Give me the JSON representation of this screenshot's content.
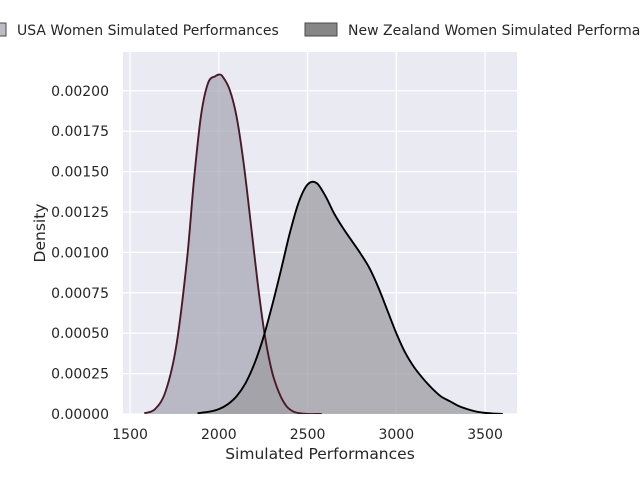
{
  "chart_data": {
    "type": "area",
    "title": "",
    "xlabel": "Simulated Performances",
    "ylabel": "Density",
    "xlim": [
      1460,
      3680
    ],
    "ylim": [
      0,
      0.00224
    ],
    "x_ticks": [
      1500,
      2000,
      2500,
      3000,
      3500
    ],
    "x_tick_labels": [
      "1500",
      "2000",
      "2500",
      "3000",
      "3500"
    ],
    "y_ticks": [
      0,
      0.00025,
      0.0005,
      0.00075,
      0.001,
      0.00125,
      0.0015,
      0.00175,
      0.002
    ],
    "y_tick_labels": [
      "0.00000",
      "0.00025",
      "0.00050",
      "0.00075",
      "0.00100",
      "0.00125",
      "0.00150",
      "0.00175",
      "0.00200"
    ],
    "grid": true,
    "legend_position": "top",
    "series": [
      {
        "name": "USA Women Simulated Performances",
        "fill_color": "#a6a6b4",
        "line_color": "#4a1a28",
        "x": [
          1580,
          1640,
          1700,
          1760,
          1820,
          1860,
          1900,
          1940,
          1980,
          2000,
          2020,
          2060,
          2100,
          2140,
          2180,
          2220,
          2260,
          2300,
          2340,
          2380,
          2420,
          2460,
          2500,
          2540,
          2580
        ],
        "y": [
          5e-06,
          3e-05,
          0.00014,
          0.00042,
          0.00095,
          0.00145,
          0.00185,
          0.00205,
          0.00209,
          0.0021,
          0.00209,
          0.00201,
          0.00184,
          0.00155,
          0.00118,
          0.0008,
          0.00048,
          0.00026,
          0.00013,
          5e-05,
          1.5e-05,
          4e-06,
          0.0,
          0.0,
          0.0
        ]
      },
      {
        "name": "New Zealand Women Simulated Performances",
        "fill_color": "#9a9a9e",
        "line_color": "#000000",
        "x": [
          1880,
          1950,
          2000,
          2050,
          2100,
          2150,
          2200,
          2250,
          2300,
          2350,
          2400,
          2450,
          2500,
          2550,
          2600,
          2650,
          2700,
          2750,
          2800,
          2850,
          2900,
          2950,
          3000,
          3050,
          3100,
          3150,
          3200,
          3250,
          3300,
          3350,
          3400,
          3450,
          3500,
          3550,
          3600
        ],
        "y": [
          5e-06,
          1.5e-05,
          3e-05,
          6e-05,
          0.00011,
          0.00019,
          0.00031,
          0.00047,
          0.00067,
          0.00089,
          0.00112,
          0.00131,
          0.00142,
          0.00143,
          0.00135,
          0.00124,
          0.00115,
          0.00107,
          0.00099,
          0.0009,
          0.00078,
          0.00064,
          0.0005,
          0.00038,
          0.00029,
          0.00022,
          0.00016,
          0.00011,
          8e-05,
          5e-05,
          3e-05,
          1.5e-05,
          7e-06,
          3e-06,
          0.0
        ]
      }
    ]
  }
}
